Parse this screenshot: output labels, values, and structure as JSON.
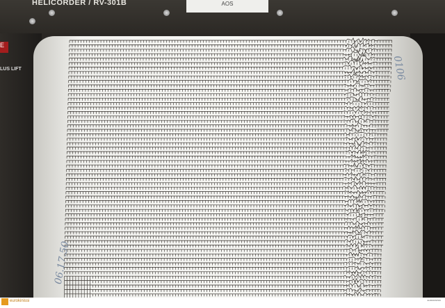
{
  "device": {
    "title": "HELICORDER / RV-301B",
    "station_label": "AOS",
    "side_label": "LUS LIFT",
    "red_button": "E"
  },
  "annotations": {
    "left_handwriting": "06.17.50",
    "right_handwriting": "0106"
  },
  "footer": {
    "brand": "eurokinissi",
    "credit": "EUROKINISSI"
  },
  "colors": {
    "trace": "#2b2622",
    "paper": "#f4f4f1",
    "ink": "#7a8aa0"
  }
}
